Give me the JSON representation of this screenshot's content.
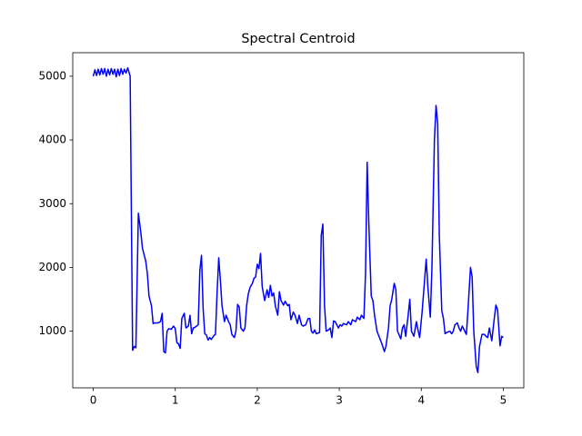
{
  "chart_data": {
    "type": "line",
    "title": "Spectral Centroid",
    "x": [
      0,
      0.02,
      0.04,
      0.06,
      0.08,
      0.1,
      0.12,
      0.14,
      0.16,
      0.18,
      0.2,
      0.22,
      0.24,
      0.26,
      0.28,
      0.3,
      0.32,
      0.34,
      0.36,
      0.38,
      0.4,
      0.42,
      0.45,
      0.48,
      0.5,
      0.52,
      0.55,
      0.58,
      0.6,
      0.64,
      0.66,
      0.68,
      0.71,
      0.73,
      0.75,
      0.79,
      0.82,
      0.84,
      0.86,
      0.88,
      0.9,
      0.92,
      0.95,
      0.98,
      1.0,
      1.02,
      1.04,
      1.06,
      1.08,
      1.11,
      1.13,
      1.16,
      1.18,
      1.2,
      1.22,
      1.24,
      1.28,
      1.3,
      1.32,
      1.34,
      1.36,
      1.38,
      1.4,
      1.42,
      1.44,
      1.47,
      1.49,
      1.51,
      1.53,
      1.55,
      1.57,
      1.6,
      1.62,
      1.65,
      1.67,
      1.69,
      1.72,
      1.74,
      1.76,
      1.78,
      1.8,
      1.83,
      1.85,
      1.87,
      1.89,
      1.91,
      1.94,
      1.96,
      1.98,
      2.0,
      2.02,
      2.04,
      2.06,
      2.09,
      2.12,
      2.14,
      2.16,
      2.18,
      2.2,
      2.22,
      2.25,
      2.27,
      2.29,
      2.32,
      2.34,
      2.37,
      2.39,
      2.41,
      2.44,
      2.46,
      2.49,
      2.51,
      2.54,
      2.56,
      2.59,
      2.62,
      2.64,
      2.66,
      2.68,
      2.7,
      2.72,
      2.76,
      2.78,
      2.8,
      2.82,
      2.84,
      2.87,
      2.89,
      2.91,
      2.93,
      2.95,
      2.99,
      3.01,
      3.03,
      3.05,
      3.09,
      3.11,
      3.14,
      3.16,
      3.2,
      3.22,
      3.25,
      3.27,
      3.3,
      3.32,
      3.34,
      3.36,
      3.39,
      3.41,
      3.43,
      3.46,
      3.49,
      3.52,
      3.55,
      3.57,
      3.6,
      3.62,
      3.64,
      3.67,
      3.69,
      3.71,
      3.75,
      3.77,
      3.79,
      3.81,
      3.84,
      3.86,
      3.88,
      3.91,
      3.94,
      3.96,
      3.98,
      4.01,
      4.04,
      4.06,
      4.08,
      4.11,
      4.13,
      4.16,
      4.18,
      4.2,
      4.22,
      4.25,
      4.27,
      4.29,
      4.31,
      4.35,
      4.37,
      4.39,
      4.41,
      4.44,
      4.46,
      4.48,
      4.5,
      4.53,
      4.55,
      4.57,
      4.6,
      4.62,
      4.64,
      4.67,
      4.69,
      4.71,
      4.74,
      4.77,
      4.79,
      4.81,
      4.83,
      4.86,
      4.89,
      4.91,
      4.93,
      4.96,
      4.98,
      5.0
    ],
    "series": [
      {
        "name": "Spectral Centroid",
        "color": "#0000ff",
        "values": [
          5000,
          5100,
          5010,
          5110,
          5020,
          5120,
          5030,
          5120,
          5000,
          5110,
          5020,
          5120,
          5030,
          5110,
          4990,
          5110,
          5010,
          5120,
          5030,
          5110,
          5050,
          5130,
          5000,
          700,
          760,
          740,
          2850,
          2550,
          2300,
          2100,
          1900,
          1550,
          1400,
          1120,
          1130,
          1130,
          1150,
          1280,
          680,
          660,
          1000,
          1040,
          1030,
          1080,
          1040,
          820,
          800,
          730,
          1200,
          1280,
          1050,
          1080,
          1250,
          960,
          1050,
          1060,
          1100,
          1950,
          2190,
          1350,
          960,
          940,
          860,
          900,
          870,
          930,
          950,
          1600,
          2150,
          1800,
          1400,
          1150,
          1250,
          1150,
          1100,
          950,
          900,
          1000,
          1420,
          1380,
          1050,
          1000,
          1050,
          1400,
          1580,
          1680,
          1750,
          1830,
          1850,
          2050,
          1980,
          2220,
          1700,
          1480,
          1650,
          1530,
          1720,
          1550,
          1600,
          1400,
          1250,
          1620,
          1480,
          1410,
          1470,
          1400,
          1420,
          1180,
          1300,
          1250,
          1120,
          1250,
          1100,
          1080,
          1100,
          1200,
          1200,
          1000,
          970,
          1020,
          960,
          980,
          2500,
          2680,
          1400,
          1000,
          1020,
          1050,
          900,
          1160,
          1150,
          1050,
          1100,
          1080,
          1120,
          1100,
          1150,
          1100,
          1180,
          1150,
          1220,
          1180,
          1250,
          1200,
          1900,
          3650,
          2700,
          1550,
          1480,
          1250,
          1000,
          900,
          800,
          680,
          770,
          1050,
          1400,
          1500,
          1750,
          1650,
          1000,
          880,
          1050,
          1100,
          920,
          1250,
          1500,
          1000,
          920,
          1150,
          1020,
          900,
          1300,
          1800,
          2130,
          1700,
          1220,
          2000,
          4000,
          4540,
          4250,
          2500,
          1320,
          1200,
          960,
          980,
          1000,
          960,
          1000,
          1100,
          1130,
          1050,
          1000,
          1080,
          1000,
          950,
          1350,
          2000,
          1850,
          1000,
          450,
          350,
          760,
          950,
          950,
          920,
          900,
          1050,
          850,
          1200,
          1410,
          1340,
          770,
          920,
          900
        ]
      }
    ],
    "xlim": [
      -0.25,
      5.25
    ],
    "ylim": [
      111,
      5369
    ],
    "xticks": [
      0,
      1,
      2,
      3,
      4,
      5
    ],
    "yticks": [
      1000,
      2000,
      3000,
      4000,
      5000
    ],
    "grid": false
  }
}
